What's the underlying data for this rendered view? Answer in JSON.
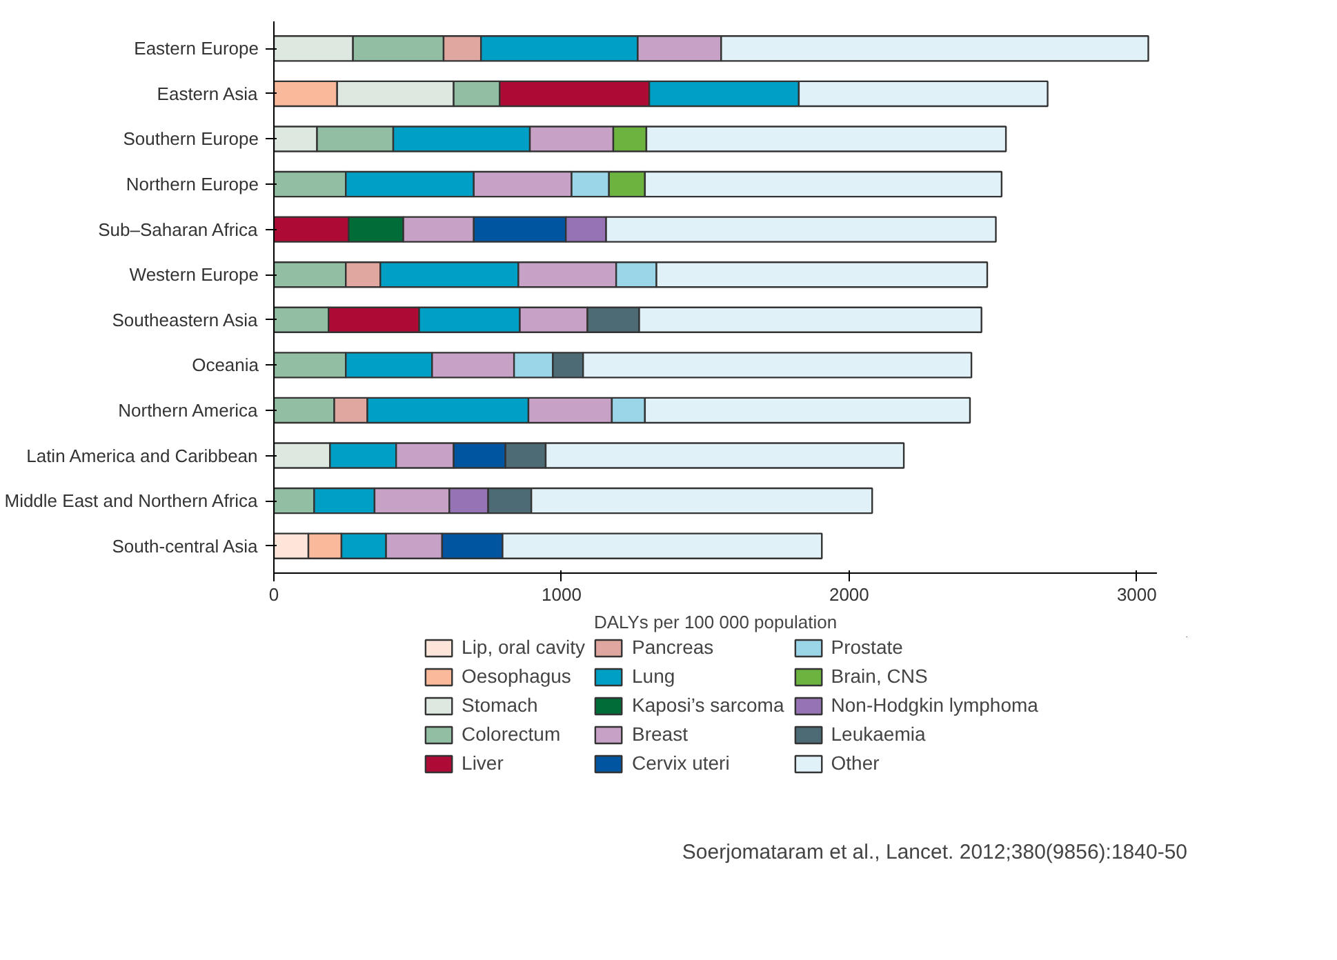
{
  "chart_data": {
    "type": "bar",
    "orientation": "horizontal",
    "stacked": true,
    "xlabel": "DALYs per 100 000 population",
    "categories": [
      "Eastern Europe",
      "Eastern Asia",
      "Southern Europe",
      "Northern Europe",
      "Sub–Saharan Africa",
      "Western Europe",
      "Southeastern Asia",
      "Oceania",
      "Northern America",
      "Latin America and Caribbean",
      "Middle East and Northern Africa",
      "South-central Asia"
    ],
    "xlim": [
      0,
      3070
    ],
    "xticks": [
      0,
      1000,
      2000,
      3000
    ],
    "grid": false,
    "legend": "bottom",
    "series": [
      {
        "name": "Lip, oral cavity",
        "color": "#fde5da",
        "values": [
          null,
          null,
          null,
          null,
          null,
          null,
          null,
          null,
          null,
          null,
          null,
          120
        ]
      },
      {
        "name": "Oesophagus",
        "color": "#f9b99a",
        "values": [
          null,
          220,
          null,
          null,
          null,
          null,
          null,
          null,
          null,
          null,
          null,
          115
        ]
      },
      {
        "name": "Stomach",
        "color": "#dce8e0",
        "values": [
          275,
          405,
          150,
          null,
          null,
          null,
          null,
          null,
          null,
          195,
          null,
          null
        ]
      },
      {
        "name": "Colorectum",
        "color": "#92bfa3",
        "values": [
          315,
          160,
          265,
          250,
          null,
          250,
          190,
          250,
          210,
          null,
          140,
          null
        ]
      },
      {
        "name": "Liver",
        "color": "#ae0a36",
        "values": [
          null,
          520,
          null,
          null,
          260,
          null,
          315,
          null,
          null,
          null,
          null,
          null
        ]
      },
      {
        "name": "Pancreas",
        "color": "#e0a7a0",
        "values": [
          130,
          null,
          null,
          null,
          null,
          120,
          null,
          null,
          115,
          null,
          null,
          null
        ]
      },
      {
        "name": "Lung",
        "color": "#00a0c6",
        "values": [
          545,
          520,
          475,
          445,
          null,
          480,
          350,
          300,
          560,
          230,
          210,
          155
        ]
      },
      {
        "name": "Kaposi’s sarcoma",
        "color": "#006d38",
        "values": [
          null,
          null,
          null,
          null,
          190,
          null,
          null,
          null,
          null,
          null,
          null,
          null
        ]
      },
      {
        "name": "Breast",
        "color": "#c8a2c6",
        "values": [
          290,
          null,
          290,
          340,
          245,
          340,
          235,
          285,
          290,
          200,
          260,
          195
        ]
      },
      {
        "name": "Cervix uteri",
        "color": "#0055a0",
        "values": [
          null,
          null,
          null,
          null,
          320,
          null,
          null,
          null,
          null,
          180,
          null,
          210
        ]
      },
      {
        "name": "Prostate",
        "color": "#9ad6e8",
        "values": [
          null,
          null,
          null,
          130,
          null,
          140,
          null,
          135,
          115,
          null,
          null,
          null
        ]
      },
      {
        "name": "Brain, CNS",
        "color": "#6db33f",
        "values": [
          null,
          null,
          115,
          125,
          null,
          null,
          null,
          null,
          null,
          null,
          null,
          null
        ]
      },
      {
        "name": "Non-Hodgkin lymphoma",
        "color": "#9673b5",
        "values": [
          null,
          null,
          null,
          null,
          140,
          null,
          null,
          null,
          null,
          null,
          135,
          null
        ]
      },
      {
        "name": "Leukaemia",
        "color": "#4d6b75",
        "values": [
          null,
          null,
          null,
          null,
          null,
          null,
          180,
          105,
          null,
          140,
          150,
          null
        ]
      },
      {
        "name": "Other",
        "color": "#e0f1f8",
        "values": [
          1485,
          865,
          1250,
          1240,
          1355,
          1150,
          1190,
          1350,
          1130,
          1245,
          1185,
          1110
        ]
      }
    ],
    "annotations": [
      "Soerjomataram et al., Lancet. 2012;380(9856):1840-50"
    ]
  }
}
